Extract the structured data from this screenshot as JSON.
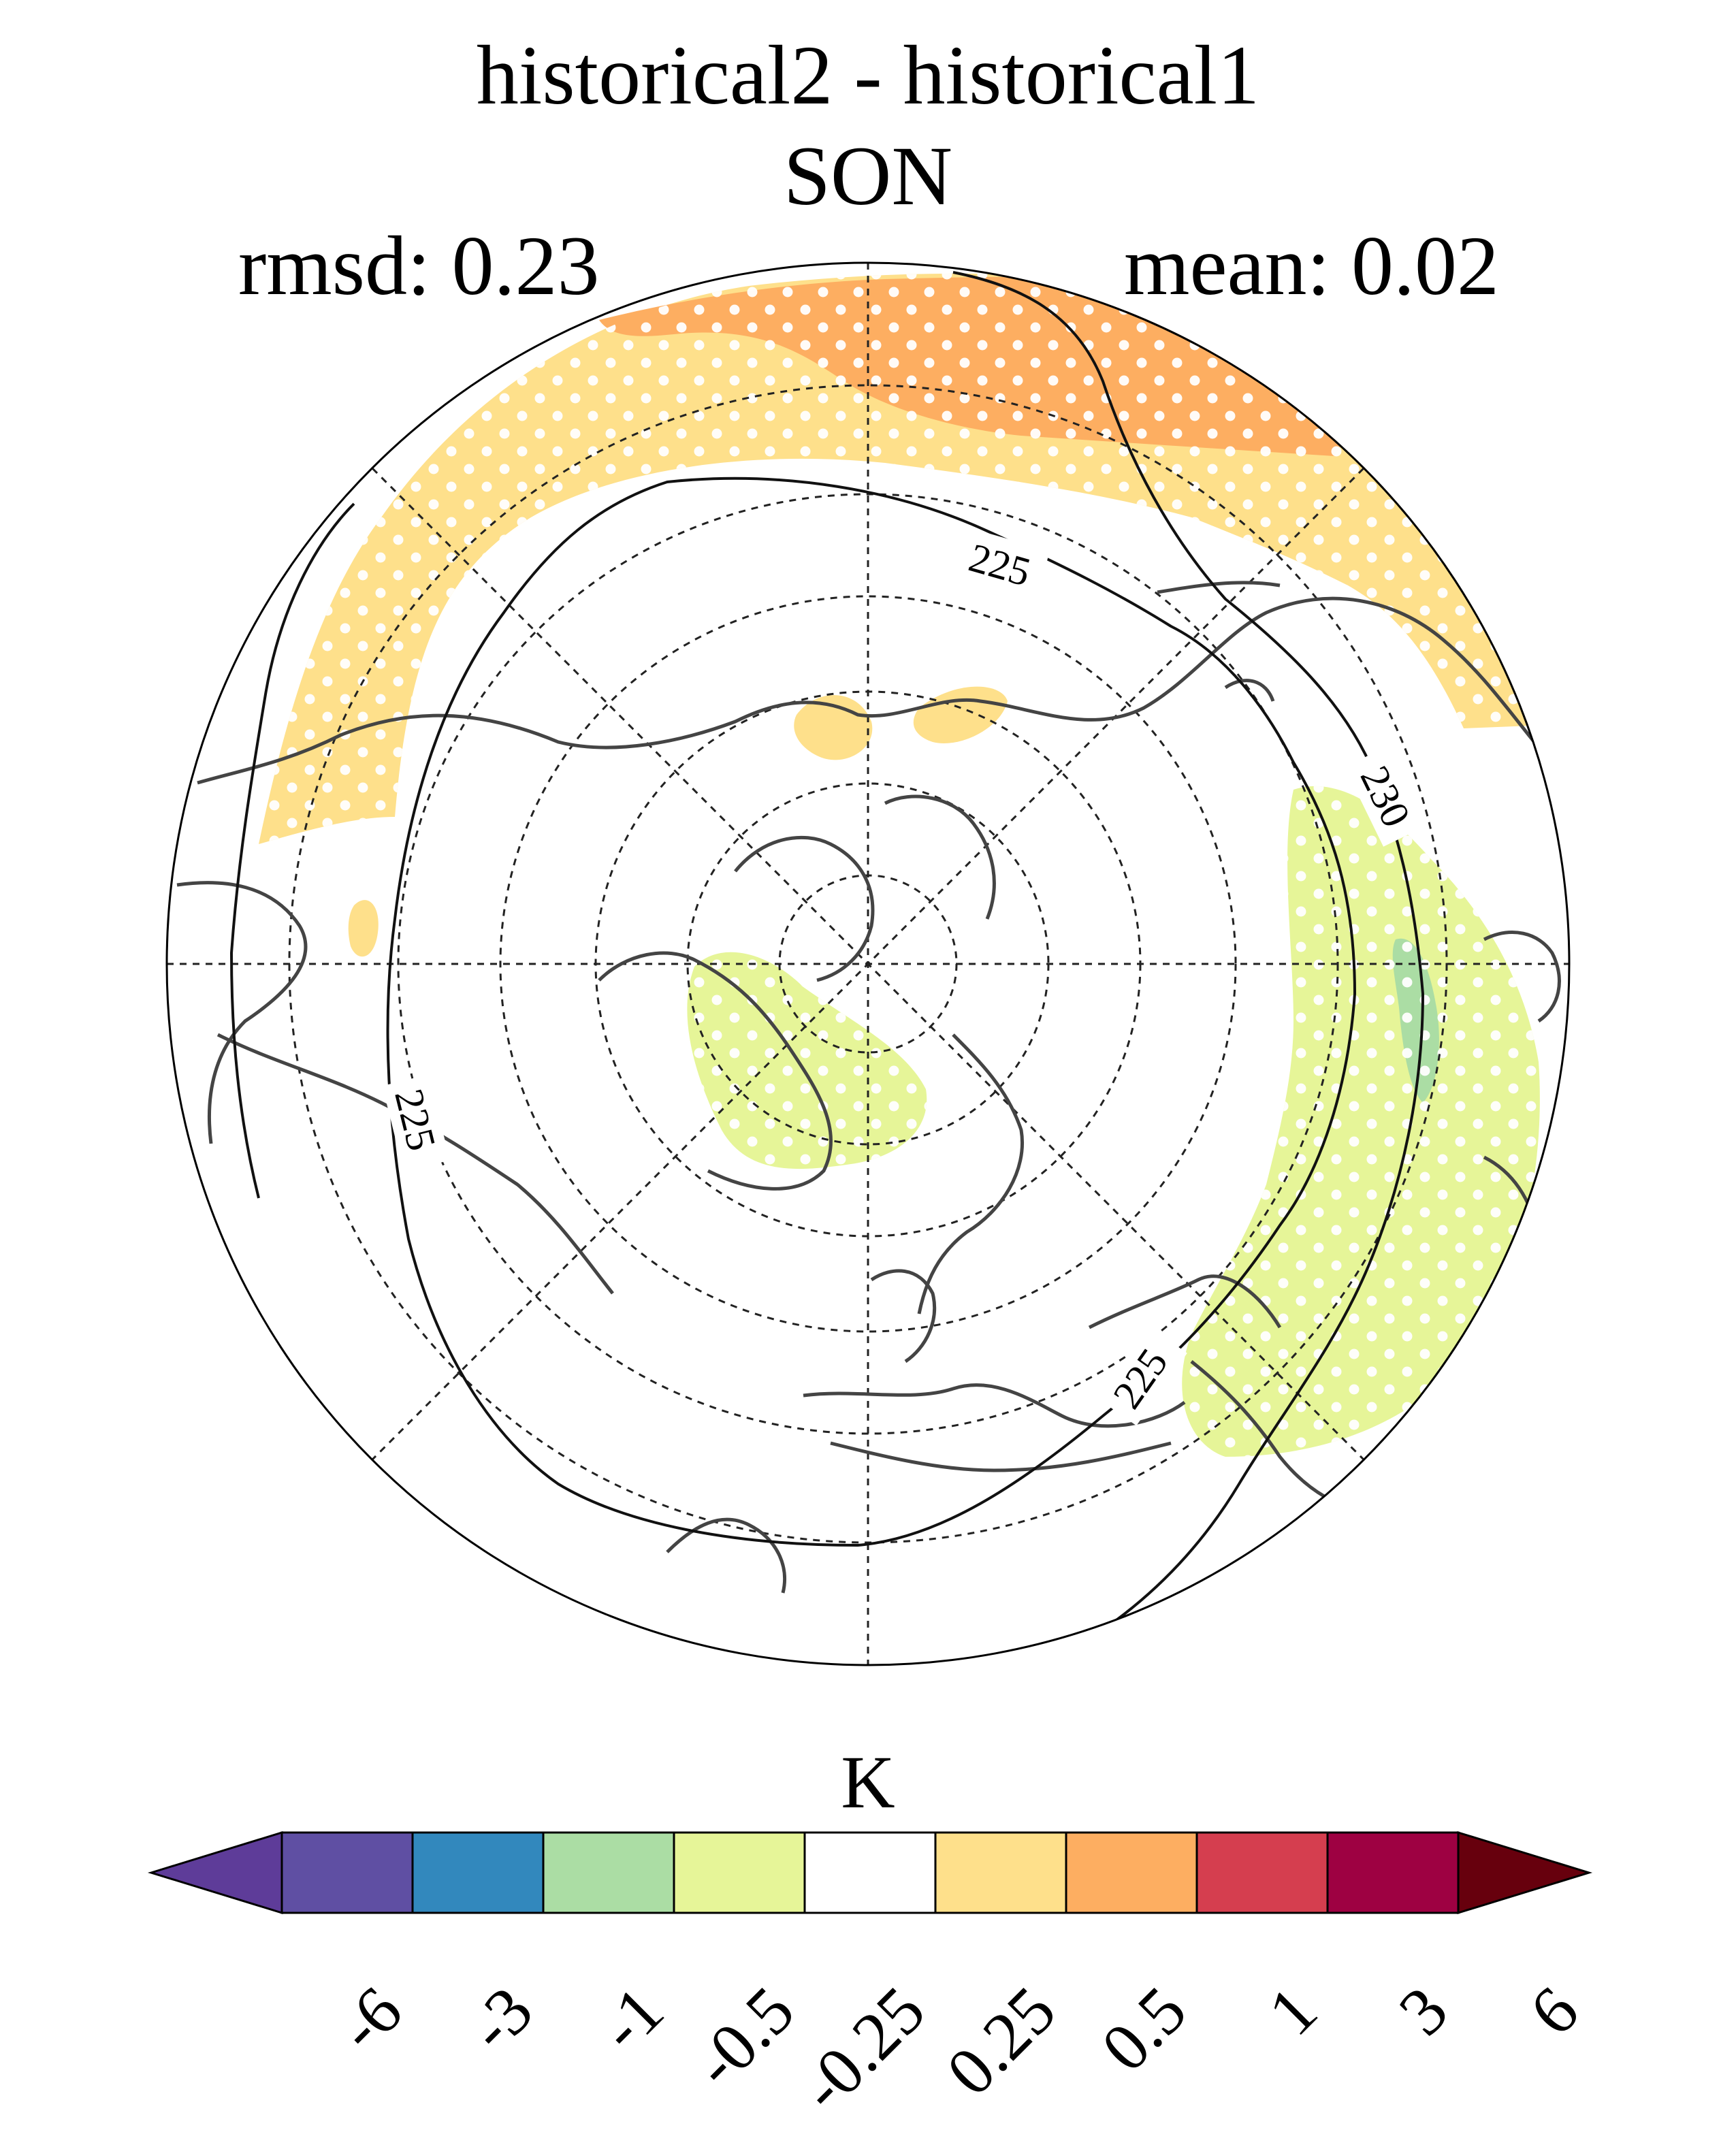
{
  "header": {
    "title": "historical2 - historical1",
    "season": "SON",
    "rmsd_text": "rmsd: 0.23",
    "mean_text": "mean: 0.02"
  },
  "map": {
    "projection": "north-polar-stereographic",
    "contour_labels": [
      "225",
      "225",
      "225",
      "230"
    ],
    "stippling": "white dots over significant regions"
  },
  "colorbar": {
    "units": "K",
    "tick_labels": [
      "-6",
      "-3",
      "-1",
      "-0.5",
      "-0.25",
      "0.25",
      "0.5",
      "1",
      "3",
      "6"
    ],
    "bins": [
      {
        "color": "#5e3c99"
      },
      {
        "color": "#5f4fa3"
      },
      {
        "color": "#3288bd"
      },
      {
        "color": "#abdda4"
      },
      {
        "color": "#e6f598"
      },
      {
        "color": "#ffffff"
      },
      {
        "color": "#fee08b"
      },
      {
        "color": "#fdae61"
      },
      {
        "color": "#d53e4f"
      },
      {
        "color": "#9e0142"
      },
      {
        "color": "#67000d"
      }
    ]
  }
}
